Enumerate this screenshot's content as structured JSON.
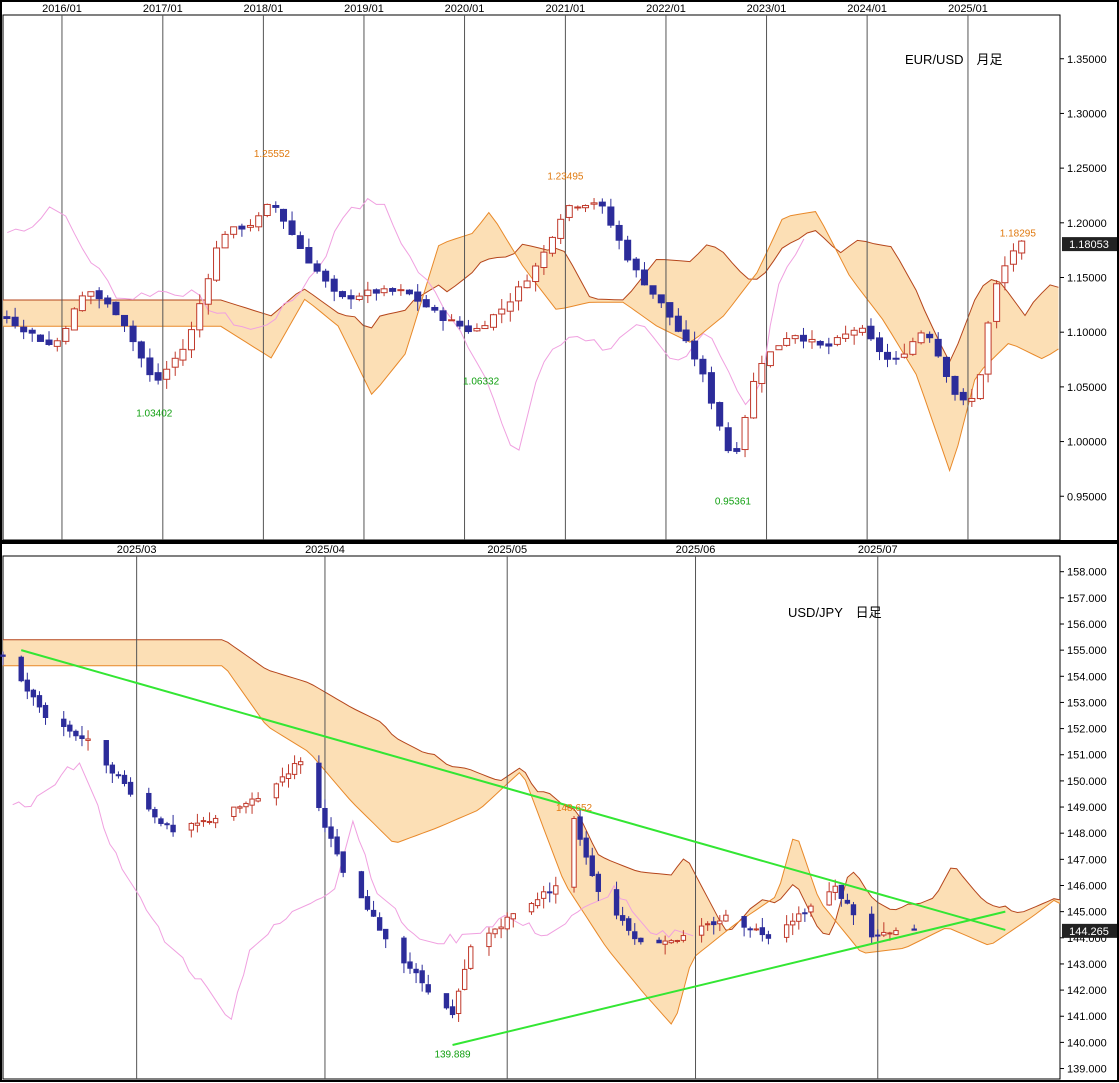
{
  "chart_data": [
    {
      "type": "candlestick",
      "title": "EUR/USD　月足",
      "timeframe_label": "月足",
      "x_ticks": [
        "2016/01",
        "2017/01",
        "2018/01",
        "2019/01",
        "2020/01",
        "2021/01",
        "2022/01",
        "2023/01",
        "2024/01",
        "2025/01"
      ],
      "x_range": [
        "2015/06",
        "2025/12"
      ],
      "ylim": [
        0.91,
        1.39
      ],
      "y_ticks": [
        "1.35000",
        "1.30000",
        "1.25000",
        "1.20000",
        "1.15000",
        "1.10000",
        "1.05000",
        "1.00000",
        "0.95000"
      ],
      "last_price": "1.18053",
      "annotations": [
        {
          "text": "1.25552",
          "x": "2018/02",
          "y": 1.25552,
          "kind": "high"
        },
        {
          "text": "1.23495",
          "x": "2021/01",
          "y": 1.23495,
          "kind": "high"
        },
        {
          "text": "1.18295",
          "x": "2025/07",
          "y": 1.18295,
          "kind": "high"
        },
        {
          "text": "1.03402",
          "x": "2016/12",
          "y": 1.03402,
          "kind": "low"
        },
        {
          "text": "1.06332",
          "x": "2020/03",
          "y": 1.06332,
          "kind": "low"
        },
        {
          "text": "0.95361",
          "x": "2022/09",
          "y": 0.95361,
          "kind": "low"
        }
      ],
      "close_path": [
        [
          "2015/06",
          1.115
        ],
        [
          "2015/12",
          1.086
        ],
        [
          "2016/04",
          1.14
        ],
        [
          "2016/08",
          1.115
        ],
        [
          "2016/12",
          1.052
        ],
        [
          "2017/04",
          1.09
        ],
        [
          "2017/08",
          1.19
        ],
        [
          "2017/12",
          1.2
        ],
        [
          "2018/02",
          1.22
        ],
        [
          "2018/06",
          1.17
        ],
        [
          "2018/10",
          1.13
        ],
        [
          "2019/02",
          1.137
        ],
        [
          "2019/06",
          1.137
        ],
        [
          "2019/10",
          1.115
        ],
        [
          "2020/02",
          1.1
        ],
        [
          "2020/06",
          1.125
        ],
        [
          "2020/10",
          1.165
        ],
        [
          "2021/01",
          1.215
        ],
        [
          "2021/05",
          1.22
        ],
        [
          "2021/09",
          1.16
        ],
        [
          "2022/01",
          1.12
        ],
        [
          "2022/05",
          1.07
        ],
        [
          "2022/09",
          0.98
        ],
        [
          "2022/12",
          1.07
        ],
        [
          "2023/04",
          1.1
        ],
        [
          "2023/08",
          1.085
        ],
        [
          "2023/12",
          1.105
        ],
        [
          "2024/04",
          1.07
        ],
        [
          "2024/08",
          1.105
        ],
        [
          "2024/12",
          1.035
        ],
        [
          "2025/02",
          1.04
        ],
        [
          "2025/04",
          1.135
        ],
        [
          "2025/06",
          1.17
        ],
        [
          "2025/07",
          1.18053
        ]
      ]
    },
    {
      "type": "candlestick",
      "title": "USD/JPY　日足",
      "timeframe_label": "日足",
      "x_ticks": [
        "2025/03",
        "2025/04",
        "2025/05",
        "2025/06",
        "2025/07"
      ],
      "x_range": [
        "2025/02/07",
        "2025/07/31"
      ],
      "ylim": [
        138.6,
        158.6
      ],
      "y_ticks": [
        "158.000",
        "157.000",
        "156.000",
        "155.000",
        "154.000",
        "153.000",
        "152.000",
        "151.000",
        "150.000",
        "149.000",
        "148.000",
        "147.000",
        "146.000",
        "145.000",
        "144.000",
        "143.000",
        "142.000",
        "141.000",
        "140.000",
        "139.000"
      ],
      "last_price": "144.265",
      "annotations": [
        {
          "text": "148.652",
          "x": "2025/05/12",
          "y": 148.652,
          "kind": "high"
        },
        {
          "text": "139.889",
          "x": "2025/04/22",
          "y": 139.889,
          "kind": "low"
        }
      ],
      "trendlines": [
        {
          "from": [
            "2025/02/10",
            155.0
          ],
          "to": [
            "2025/07/22",
            144.3
          ]
        },
        {
          "from": [
            "2025/04/22",
            139.9
          ],
          "to": [
            "2025/07/22",
            145.0
          ]
        }
      ],
      "close_path": [
        [
          "2025/02/07",
          154.8
        ],
        [
          "2025/02/14",
          152.5
        ],
        [
          "2025/02/21",
          151.5
        ],
        [
          "2025/02/28",
          149.6
        ],
        [
          "2025/03/07",
          148.0
        ],
        [
          "2025/03/14",
          148.6
        ],
        [
          "2025/03/21",
          149.3
        ],
        [
          "2025/03/28",
          150.8
        ],
        [
          "2025/04/04",
          146.5
        ],
        [
          "2025/04/11",
          144.0
        ],
        [
          "2025/04/17",
          142.3
        ],
        [
          "2025/04/22",
          141.0
        ],
        [
          "2025/04/25",
          143.6
        ],
        [
          "2025/05/02",
          144.9
        ],
        [
          "2025/05/09",
          146.0
        ],
        [
          "2025/05/12",
          148.5
        ],
        [
          "2025/05/16",
          145.8
        ],
        [
          "2025/05/23",
          143.8
        ],
        [
          "2025/05/30",
          144.0
        ],
        [
          "2025/06/06",
          144.8
        ],
        [
          "2025/06/13",
          144.1
        ],
        [
          "2025/06/20",
          145.2
        ],
        [
          "2025/06/24",
          145.9
        ],
        [
          "2025/06/30",
          144.0
        ],
        [
          "2025/07/04",
          144.2
        ],
        [
          "2025/07/07",
          144.265
        ]
      ]
    }
  ]
}
